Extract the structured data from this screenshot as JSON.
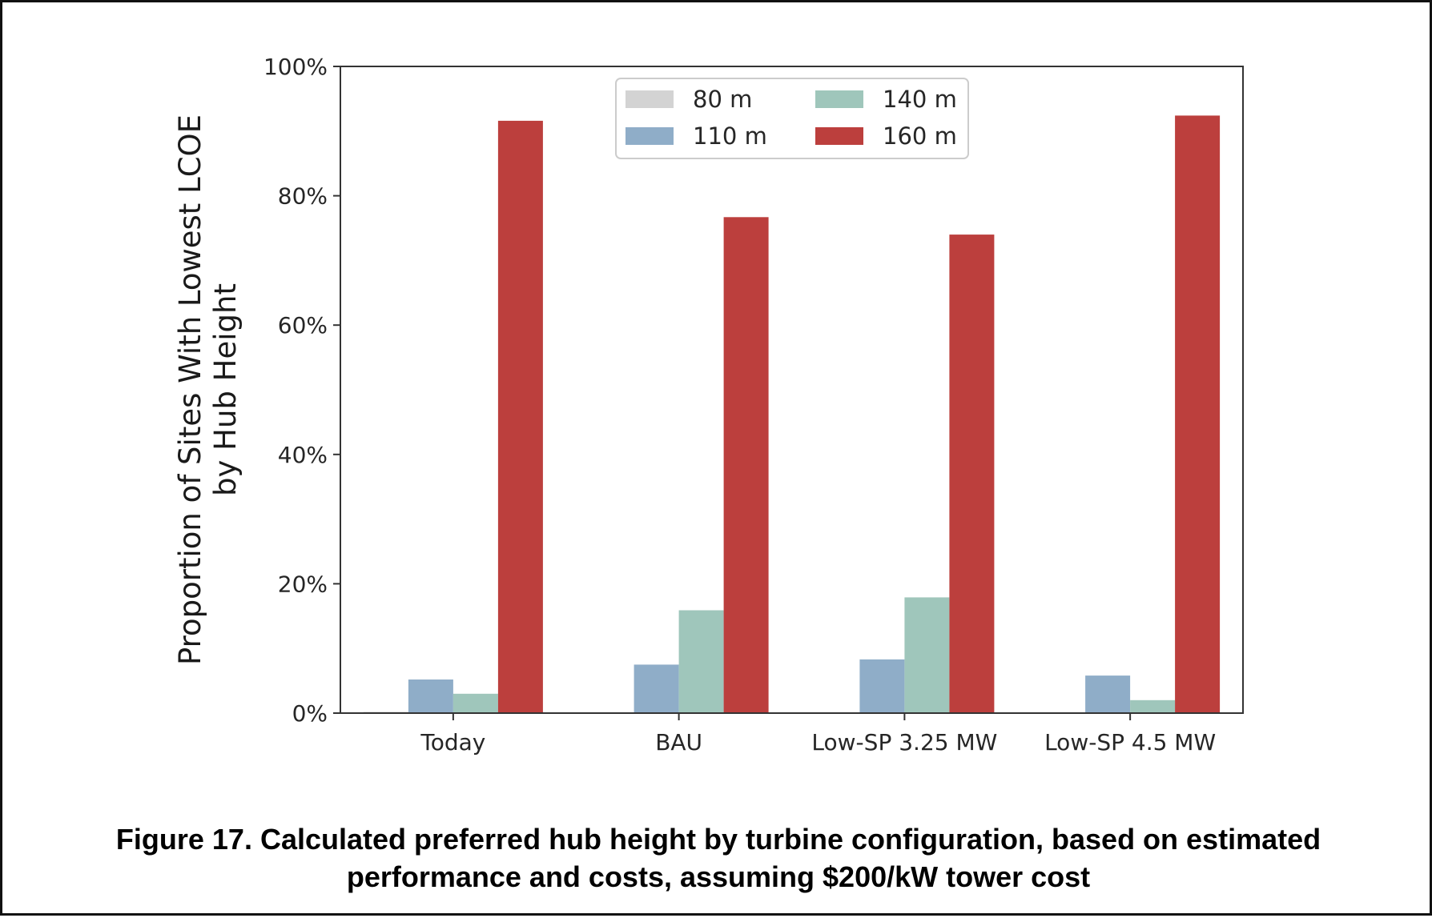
{
  "caption": {
    "line1": "Figure 17. Calculated preferred hub height by turbine configuration, based on estimated",
    "line2": "performance and costs, assuming $200/kW tower cost"
  },
  "chart_data": {
    "type": "bar",
    "title": "",
    "xlabel": "",
    "ylabel_lines": [
      "Proportion of Sites With Lowest LCOE",
      "by Hub Height"
    ],
    "categories": [
      "Today",
      "BAU",
      "Low-SP 3.25 MW",
      "Low-SP 4.5 MW"
    ],
    "ylim": [
      0,
      100
    ],
    "yticks": [
      0,
      20,
      40,
      60,
      80,
      100
    ],
    "ytick_labels": [
      "0%",
      "20%",
      "40%",
      "60%",
      "80%",
      "100%"
    ],
    "grid": false,
    "legend_position": "top-center",
    "legend_columns": 2,
    "series": [
      {
        "name": "80 m",
        "color": "#d3d3d3",
        "values": [
          0.2,
          0,
          0,
          0
        ]
      },
      {
        "name": "110 m",
        "color": "#8fadc8",
        "values": [
          5.2,
          7.5,
          8.3,
          5.8
        ]
      },
      {
        "name": "140 m",
        "color": "#9fc6bb",
        "values": [
          3.0,
          15.9,
          17.9,
          2.0
        ]
      },
      {
        "name": "160 m",
        "color": "#bc3f3d",
        "values": [
          91.6,
          76.7,
          74.0,
          92.4
        ]
      }
    ]
  }
}
